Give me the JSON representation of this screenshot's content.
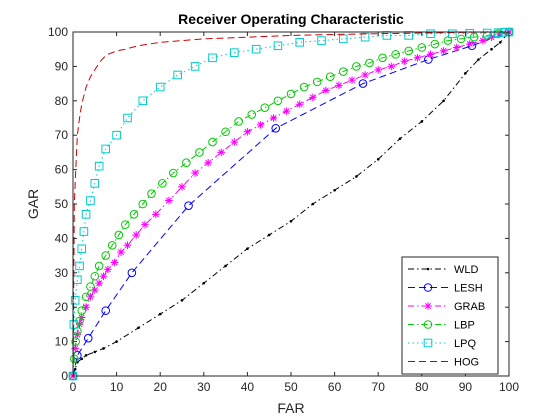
{
  "chart_data": {
    "type": "line",
    "title": "Receiver Operating Characteristic",
    "xlabel": "FAR",
    "ylabel": "GAR",
    "xlim": [
      0,
      100
    ],
    "ylim": [
      0,
      100
    ],
    "xticks": [
      0,
      10,
      20,
      30,
      40,
      50,
      60,
      70,
      80,
      90,
      100
    ],
    "yticks": [
      0,
      10,
      20,
      30,
      40,
      50,
      60,
      70,
      80,
      90,
      100
    ],
    "grid": false,
    "legend_position": "bottom-right",
    "series": [
      {
        "name": "WLD",
        "color": "#000000",
        "line_style": "dash-dot",
        "marker": "point",
        "x": [
          0,
          0.5,
          1,
          2,
          3,
          5,
          7,
          10,
          15,
          20,
          25,
          30,
          35,
          40,
          45,
          50,
          55,
          60,
          65,
          70,
          75,
          80,
          85,
          90,
          93,
          96,
          98,
          100
        ],
        "y": [
          0,
          2,
          4,
          5,
          6,
          7,
          8,
          10,
          14,
          18,
          22,
          27,
          32,
          37,
          41,
          45,
          50,
          54,
          58,
          63,
          69,
          74,
          80,
          88,
          92,
          95,
          97,
          100
        ]
      },
      {
        "name": "LESH",
        "color": "#0000ff",
        "line_style": "dashed",
        "marker": "circle",
        "x": [
          0,
          1,
          3.5,
          7.5,
          13.5,
          26.5,
          46.5,
          66.5,
          81.5,
          91.5,
          100
        ],
        "y": [
          0,
          6,
          11,
          19,
          30,
          49.5,
          72,
          85,
          92,
          96,
          100
        ],
        "marker_x": [
          0,
          1,
          3.5,
          7.5,
          13.5,
          26.5,
          46.5,
          66.5,
          81.5,
          91.5,
          100
        ],
        "marker_y": [
          0,
          6,
          11,
          19,
          30,
          49.5,
          72,
          85,
          92,
          96,
          100
        ]
      },
      {
        "name": "GRAB",
        "color": "#ff00ff",
        "line_style": "dash-dot",
        "marker": "asterisk",
        "x": [
          0,
          0.5,
          1,
          1.5,
          2,
          3,
          4,
          5,
          6,
          7,
          8,
          9.5,
          11,
          12.5,
          14.5,
          16.5,
          19,
          22,
          25,
          28,
          31,
          34,
          37,
          40,
          43,
          46,
          49,
          52,
          55,
          58,
          61,
          64,
          67,
          70,
          73,
          76,
          79,
          82,
          85,
          88,
          91,
          94,
          96,
          98,
          100
        ],
        "y": [
          0,
          8,
          12,
          15,
          17,
          20,
          23,
          25,
          27,
          29,
          31,
          33,
          36,
          38,
          41,
          44,
          47,
          51,
          55,
          59,
          62,
          65,
          68,
          71,
          73,
          75,
          77,
          79,
          81,
          83,
          84.5,
          86,
          87.5,
          89,
          90,
          91.5,
          92.5,
          93.5,
          94.5,
          95.5,
          96.5,
          97.5,
          98.5,
          99.5,
          100
        ]
      },
      {
        "name": "LBP",
        "color": "#00cc00",
        "line_style": "dash-dot",
        "marker": "circle",
        "x": [
          0,
          0.3,
          0.6,
          1,
          1.5,
          2,
          3,
          4,
          5,
          6,
          7.5,
          9,
          10.5,
          12,
          14,
          16,
          18,
          20.5,
          23,
          26,
          29,
          32,
          35,
          38,
          41,
          44,
          47,
          50,
          53,
          56,
          59,
          62,
          65,
          68,
          71,
          74,
          77,
          80,
          83,
          86,
          89,
          92,
          95,
          97.5,
          100
        ],
        "y": [
          0,
          5,
          10,
          13,
          16,
          19,
          23,
          26,
          29,
          32,
          35,
          38,
          41,
          44,
          47,
          50,
          53,
          56,
          59,
          62,
          65,
          68,
          71,
          74,
          76,
          78,
          80,
          82,
          84,
          85.5,
          87,
          88.5,
          90,
          91,
          92.5,
          93.5,
          94.5,
          95.5,
          96.5,
          97.5,
          98,
          98.5,
          99,
          99.5,
          100
        ]
      },
      {
        "name": "LPQ",
        "color": "#00cccc",
        "line_style": "dotted",
        "marker": "square",
        "x": [
          0,
          0.2,
          0.5,
          1,
          1.5,
          2,
          2.5,
          3,
          4,
          5,
          6,
          7.5,
          10,
          12.5,
          16,
          20,
          24,
          28,
          32,
          37,
          42,
          47,
          52,
          57,
          62,
          67,
          72,
          77,
          82,
          87,
          91,
          95,
          97.5,
          99,
          100
        ],
        "y": [
          0,
          15,
          22,
          28,
          32,
          37,
          42,
          47,
          51,
          56,
          61,
          66,
          70,
          75,
          80,
          84,
          87.5,
          90,
          92.5,
          94,
          95,
          96,
          97,
          97.5,
          98,
          98.5,
          99,
          99,
          99.5,
          99.5,
          99.6,
          99.7,
          99.8,
          99.9,
          100
        ]
      },
      {
        "name": "HOG",
        "color": "#cc0000",
        "line_style": "dashed",
        "marker": "none",
        "x": [
          0,
          0.3,
          0.7,
          1,
          1.5,
          2,
          3,
          4,
          5,
          6,
          7,
          8,
          10,
          12,
          15,
          20,
          30,
          40,
          50,
          60,
          70,
          80,
          90,
          100
        ],
        "y": [
          0,
          50,
          62,
          70,
          75,
          79,
          84,
          87,
          89,
          91,
          92.5,
          93.5,
          94.5,
          95,
          96,
          97,
          98,
          98.5,
          99,
          99.3,
          99.5,
          99.7,
          99.9,
          100
        ]
      }
    ]
  }
}
